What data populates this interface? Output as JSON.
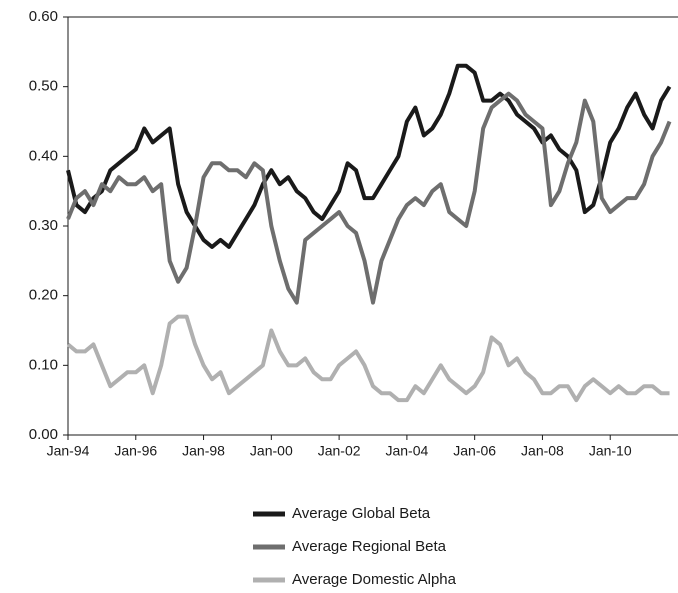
{
  "chart_data": {
    "type": "line",
    "x": [
      "Jan-94",
      "Apr-94",
      "Jul-94",
      "Oct-94",
      "Jan-95",
      "Apr-95",
      "Jul-95",
      "Oct-95",
      "Jan-96",
      "Apr-96",
      "Jul-96",
      "Oct-96",
      "Jan-97",
      "Apr-97",
      "Jul-97",
      "Oct-97",
      "Jan-98",
      "Apr-98",
      "Jul-98",
      "Oct-98",
      "Jan-99",
      "Apr-99",
      "Jul-99",
      "Oct-99",
      "Jan-00",
      "Apr-00",
      "Jul-00",
      "Oct-00",
      "Jan-01",
      "Apr-01",
      "Jul-01",
      "Oct-01",
      "Jan-02",
      "Apr-02",
      "Jul-02",
      "Oct-02",
      "Jan-03",
      "Apr-03",
      "Jul-03",
      "Oct-03",
      "Jan-04",
      "Apr-04",
      "Jul-04",
      "Oct-04",
      "Jan-05",
      "Apr-05",
      "Jul-05",
      "Oct-05",
      "Jan-06",
      "Apr-06",
      "Jul-06",
      "Oct-06",
      "Jan-07",
      "Apr-07",
      "Jul-07",
      "Oct-07",
      "Jan-08",
      "Apr-08",
      "Jul-08",
      "Oct-08",
      "Jan-09",
      "Apr-09",
      "Jul-09",
      "Oct-09",
      "Jan-10",
      "Apr-10",
      "Jul-10",
      "Oct-10",
      "Jan-11",
      "Apr-11",
      "Jul-11",
      "Oct-11"
    ],
    "xticks": [
      "Jan-94",
      "Jan-96",
      "Jan-98",
      "Jan-00",
      "Jan-02",
      "Jan-04",
      "Jan-06",
      "Jan-08",
      "Jan-10"
    ],
    "ylim": [
      0,
      0.6
    ],
    "yticks": [
      {
        "value": 0,
        "label": "0.00"
      },
      {
        "value": 0.1,
        "label": "0.10"
      },
      {
        "value": 0.2,
        "label": "0.20"
      },
      {
        "value": 0.3,
        "label": "0.30"
      },
      {
        "value": 0.4,
        "label": "0.40"
      },
      {
        "value": 0.5,
        "label": "0.50"
      },
      {
        "value": 0.6,
        "label": "0.60"
      }
    ],
    "series": [
      {
        "name": "Average Global Beta",
        "color": "#1a1a1a",
        "values": [
          0.38,
          0.33,
          0.32,
          0.34,
          0.35,
          0.38,
          0.39,
          0.4,
          0.41,
          0.44,
          0.42,
          0.43,
          0.44,
          0.36,
          0.32,
          0.3,
          0.28,
          0.27,
          0.28,
          0.27,
          0.29,
          0.31,
          0.33,
          0.36,
          0.38,
          0.36,
          0.37,
          0.35,
          0.34,
          0.32,
          0.31,
          0.33,
          0.35,
          0.39,
          0.38,
          0.34,
          0.34,
          0.36,
          0.38,
          0.4,
          0.45,
          0.47,
          0.43,
          0.44,
          0.46,
          0.49,
          0.53,
          0.53,
          0.52,
          0.48,
          0.48,
          0.49,
          0.48,
          0.46,
          0.45,
          0.44,
          0.42,
          0.43,
          0.41,
          0.4,
          0.38,
          0.32,
          0.33,
          0.37,
          0.42,
          0.44,
          0.47,
          0.49,
          0.46,
          0.44,
          0.48,
          0.5
        ]
      },
      {
        "name": "Average Regional Beta",
        "color": "#6e6e6e",
        "values": [
          0.31,
          0.34,
          0.35,
          0.33,
          0.36,
          0.35,
          0.37,
          0.36,
          0.36,
          0.37,
          0.35,
          0.36,
          0.25,
          0.22,
          0.24,
          0.3,
          0.37,
          0.39,
          0.39,
          0.38,
          0.38,
          0.37,
          0.39,
          0.38,
          0.3,
          0.25,
          0.21,
          0.19,
          0.28,
          0.29,
          0.3,
          0.31,
          0.32,
          0.3,
          0.29,
          0.25,
          0.19,
          0.25,
          0.28,
          0.31,
          0.33,
          0.34,
          0.33,
          0.35,
          0.36,
          0.32,
          0.31,
          0.3,
          0.35,
          0.44,
          0.47,
          0.48,
          0.49,
          0.48,
          0.46,
          0.45,
          0.44,
          0.33,
          0.35,
          0.39,
          0.42,
          0.48,
          0.45,
          0.34,
          0.32,
          0.33,
          0.34,
          0.34,
          0.36,
          0.4,
          0.42,
          0.45
        ]
      },
      {
        "name": "Average Domestic Alpha",
        "color": "#b0b0b0",
        "values": [
          0.13,
          0.12,
          0.12,
          0.13,
          0.1,
          0.07,
          0.08,
          0.09,
          0.09,
          0.1,
          0.06,
          0.1,
          0.16,
          0.17,
          0.17,
          0.13,
          0.1,
          0.08,
          0.09,
          0.06,
          0.07,
          0.08,
          0.09,
          0.1,
          0.15,
          0.12,
          0.1,
          0.1,
          0.11,
          0.09,
          0.08,
          0.08,
          0.1,
          0.11,
          0.12,
          0.1,
          0.07,
          0.06,
          0.06,
          0.05,
          0.05,
          0.07,
          0.06,
          0.08,
          0.1,
          0.08,
          0.07,
          0.06,
          0.07,
          0.09,
          0.14,
          0.13,
          0.1,
          0.11,
          0.09,
          0.08,
          0.06,
          0.06,
          0.07,
          0.07,
          0.05,
          0.07,
          0.08,
          0.07,
          0.06,
          0.07,
          0.06,
          0.06,
          0.07,
          0.07,
          0.06,
          0.06
        ]
      }
    ]
  }
}
